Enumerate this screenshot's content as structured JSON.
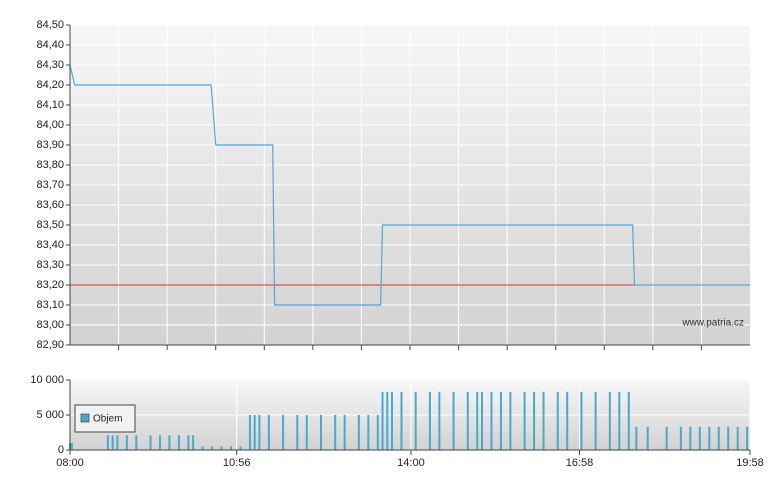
{
  "chart_data": [
    {
      "type": "line",
      "x": [
        "08:00",
        "08:05",
        "10:29",
        "10:34",
        "11:34",
        "11:36",
        "13:28",
        "13:30",
        "17:54",
        "17:56",
        "19:58"
      ],
      "values": [
        84.3,
        84.2,
        84.2,
        83.9,
        83.9,
        83.1,
        83.1,
        83.5,
        83.5,
        83.2,
        83.2
      ],
      "color": "#55a8d4",
      "xlim": [
        "08:00",
        "19:58"
      ],
      "ylim": [
        82.9,
        84.5
      ],
      "yticks": [
        {
          "value": 82.9,
          "label": "82,90"
        },
        {
          "value": 83.0,
          "label": "83,00"
        },
        {
          "value": 83.1,
          "label": "83,10"
        },
        {
          "value": 83.2,
          "label": "83,20"
        },
        {
          "value": 83.3,
          "label": "83,30"
        },
        {
          "value": 83.4,
          "label": "83,40"
        },
        {
          "value": 83.5,
          "label": "83,50"
        },
        {
          "value": 83.6,
          "label": "83,60"
        },
        {
          "value": 83.7,
          "label": "83,70"
        },
        {
          "value": 83.8,
          "label": "83,80"
        },
        {
          "value": 83.9,
          "label": "83,90"
        },
        {
          "value": 84.0,
          "label": "84,00"
        },
        {
          "value": 84.1,
          "label": "84,10"
        },
        {
          "value": 84.2,
          "label": "84,20"
        },
        {
          "value": 84.3,
          "label": "84,30"
        },
        {
          "value": 84.4,
          "label": "84,40"
        },
        {
          "value": 84.5,
          "label": "84,50"
        }
      ],
      "reference_line": {
        "value": 83.2,
        "color": "#e0301e"
      },
      "watermark": "www.patria.cz",
      "grid": true
    },
    {
      "type": "bar",
      "x": [
        "08:00",
        "08:02",
        "08:40",
        "08:45",
        "08:50",
        "09:00",
        "09:10",
        "09:25",
        "09:35",
        "09:45",
        "09:55",
        "10:05",
        "10:10",
        "10:20",
        "10:30",
        "10:40",
        "10:50",
        "11:00",
        "11:10",
        "11:15",
        "11:20",
        "11:30",
        "11:45",
        "12:00",
        "12:10",
        "12:25",
        "12:40",
        "12:50",
        "13:05",
        "13:15",
        "13:25",
        "13:30",
        "13:35",
        "13:40",
        "13:50",
        "14:05",
        "14:20",
        "14:30",
        "14:45",
        "15:00",
        "15:10",
        "15:15",
        "15:25",
        "15:35",
        "15:45",
        "16:00",
        "16:10",
        "16:20",
        "16:35",
        "16:45",
        "17:00",
        "17:15",
        "17:30",
        "17:40",
        "17:50",
        "17:58",
        "18:10",
        "18:30",
        "18:45",
        "18:55",
        "19:05",
        "19:15",
        "19:25",
        "19:35",
        "19:45",
        "19:55"
      ],
      "series": [
        {
          "name": "Objem",
          "color": "#4aa8cc",
          "values": [
            1000,
            1000,
            2100,
            2100,
            2100,
            2100,
            2100,
            2100,
            2100,
            2100,
            2100,
            2100,
            2100,
            500,
            500,
            500,
            500,
            500,
            5000,
            5000,
            5000,
            5000,
            5000,
            5000,
            5000,
            5000,
            5000,
            5000,
            5000,
            5000,
            5000,
            8300,
            8300,
            8300,
            8300,
            8300,
            8300,
            8300,
            8300,
            8300,
            8300,
            8300,
            8300,
            8300,
            8300,
            8300,
            8300,
            8300,
            8300,
            8300,
            8300,
            8300,
            8300,
            8300,
            8300,
            3300,
            3300,
            3300,
            3300,
            3300,
            3300,
            3300,
            3300,
            3300,
            3300,
            3300
          ]
        }
      ],
      "xlim": [
        "08:00",
        "19:58"
      ],
      "xticks": [
        "08:00",
        "10:56",
        "14:00",
        "16:58",
        "19:58"
      ],
      "ylim": [
        0,
        10000
      ],
      "yticks": [
        0,
        {
          "value": 5000,
          "label": "5 000"
        },
        {
          "value": 10000,
          "label": "10 000"
        }
      ],
      "legend": "left",
      "grid": true
    }
  ]
}
